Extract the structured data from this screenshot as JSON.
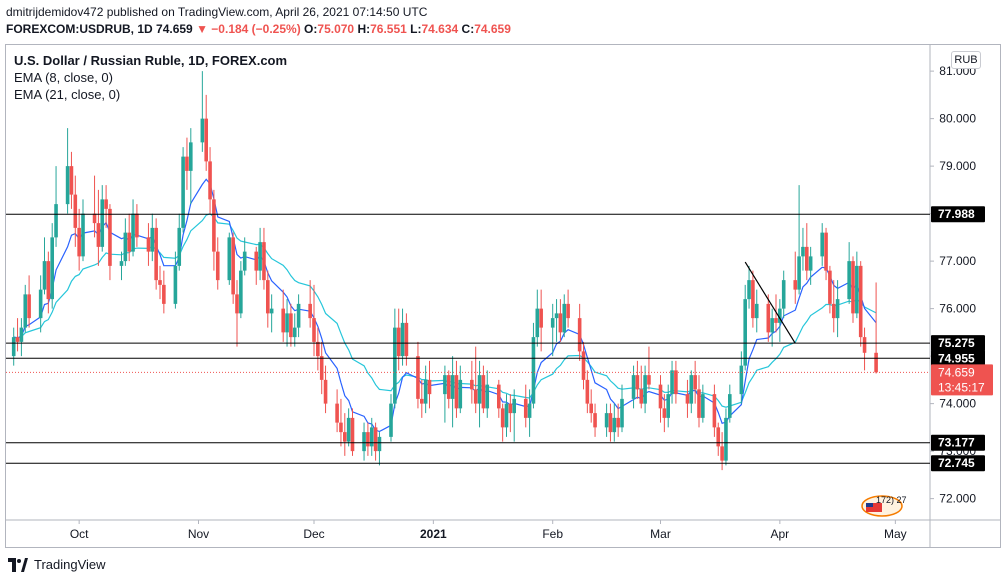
{
  "header": {
    "publisher_line": "dmitrijdemidov472 published on TradingView.com, April 26, 2021 07:14:50 UTC",
    "symbol": "FOREXCOM:USDRUB, 1D",
    "last": "74.659",
    "change": "−0.184 (−0.25%)",
    "o_label": "O:",
    "o_value": "75.070",
    "h_label": "H:",
    "h_value": "76.551",
    "l_label": "L:",
    "l_value": "74.634",
    "c_label": "C:",
    "c_value": "74.659"
  },
  "legend": {
    "title": "U.S. Dollar / Russian Ruble, 1D, FOREX.com",
    "ema8": "EMA (8, close, 0)",
    "ema21": "EMA (21, close, 0)"
  },
  "currency_button": "RUB",
  "footer": {
    "brand": "TradingView"
  },
  "badge": "172) 27",
  "colors": {
    "up": "#26a69a",
    "down": "#ef5350",
    "ema8": "#2962ff",
    "ema21": "#26c6da",
    "level_line": "#000000",
    "price_line": "#ef5350"
  },
  "chart_data": {
    "type": "candlestick",
    "ylim": [
      71.55,
      81.55
    ],
    "y_ticks": [
      "72.000",
      "73.000",
      "74.000",
      "75.000",
      "76.000",
      "77.000",
      "78.000",
      "79.000",
      "80.000",
      "81.000"
    ],
    "x_ticks": [
      {
        "label": "Oct",
        "date": "2020-10-01",
        "bold": false
      },
      {
        "label": "Nov",
        "date": "2020-11-01",
        "bold": false
      },
      {
        "label": "Dec",
        "date": "2020-12-01",
        "bold": false
      },
      {
        "label": "2021",
        "date": "2021-01-01",
        "bold": true
      },
      {
        "label": "Feb",
        "date": "2021-02-01",
        "bold": false
      },
      {
        "label": "Mar",
        "date": "2021-03-01",
        "bold": false
      },
      {
        "label": "Apr",
        "date": "2021-04-01",
        "bold": false
      },
      {
        "label": "May",
        "date": "2021-05-01",
        "bold": false
      }
    ],
    "x_range": [
      "2020-09-12",
      "2021-05-10"
    ],
    "horizontal_levels": [
      {
        "value": 77.988,
        "label": "77.988"
      },
      {
        "value": 75.275,
        "label": "75.275"
      },
      {
        "value": 74.955,
        "label": "74.955"
      },
      {
        "value": 73.177,
        "label": "73.177"
      },
      {
        "value": 72.745,
        "label": "72.745"
      }
    ],
    "current_price": {
      "value": 74.659,
      "label": "74.659",
      "countdown": "13:45:17"
    },
    "trendline": {
      "start": {
        "date": "2021-03-23",
        "value": 76.98
      },
      "end": {
        "date": "2021-04-05",
        "value": 75.27
      }
    },
    "candles": [
      [
        "2020-09-14",
        75.0,
        75.6,
        74.8,
        75.4
      ],
      [
        "2020-09-15",
        75.4,
        75.8,
        75.1,
        75.3
      ],
      [
        "2020-09-16",
        75.3,
        75.8,
        75.0,
        75.6
      ],
      [
        "2020-09-17",
        75.6,
        76.5,
        75.5,
        76.3
      ],
      [
        "2020-09-18",
        76.3,
        76.7,
        75.6,
        75.8
      ],
      [
        "2020-09-21",
        75.8,
        76.7,
        75.5,
        76.4
      ],
      [
        "2020-09-22",
        76.4,
        77.5,
        76.3,
        77.0
      ],
      [
        "2020-09-23",
        77.0,
        77.2,
        75.9,
        76.2
      ],
      [
        "2020-09-24",
        76.2,
        77.8,
        76.0,
        77.5
      ],
      [
        "2020-09-25",
        77.5,
        79.0,
        77.3,
        78.2
      ],
      [
        "2020-09-28",
        78.2,
        79.8,
        78.0,
        79.0
      ],
      [
        "2020-09-29",
        79.0,
        79.3,
        78.1,
        78.4
      ],
      [
        "2020-09-30",
        78.4,
        78.8,
        77.3,
        77.7
      ],
      [
        "2020-10-01",
        77.7,
        78.1,
        76.8,
        77.1
      ],
      [
        "2020-10-02",
        77.1,
        78.3,
        77.0,
        78.0
      ],
      [
        "2020-10-05",
        78.0,
        78.8,
        77.5,
        77.8
      ],
      [
        "2020-10-06",
        77.8,
        78.5,
        76.9,
        77.3
      ],
      [
        "2020-10-07",
        77.3,
        78.6,
        77.2,
        78.3
      ],
      [
        "2020-10-08",
        78.3,
        78.6,
        77.7,
        78.1
      ],
      [
        "2020-10-09",
        78.1,
        78.2,
        76.6,
        76.9
      ],
      [
        "2020-10-12",
        76.9,
        77.2,
        76.6,
        77.0
      ],
      [
        "2020-10-13",
        77.0,
        77.9,
        76.9,
        77.6
      ],
      [
        "2020-10-14",
        77.6,
        78.0,
        77.0,
        77.2
      ],
      [
        "2020-10-15",
        77.2,
        78.3,
        77.1,
        78.0
      ],
      [
        "2020-10-16",
        78.0,
        78.2,
        77.3,
        77.5
      ],
      [
        "2020-10-19",
        77.5,
        77.8,
        76.9,
        77.2
      ],
      [
        "2020-10-20",
        77.2,
        78.0,
        77.0,
        77.7
      ],
      [
        "2020-10-21",
        77.7,
        77.9,
        76.4,
        76.6
      ],
      [
        "2020-10-22",
        76.6,
        76.9,
        76.2,
        76.5
      ],
      [
        "2020-10-23",
        76.5,
        76.8,
        75.9,
        76.1
      ],
      [
        "2020-10-26",
        76.1,
        77.2,
        76.0,
        76.9
      ],
      [
        "2020-10-27",
        76.9,
        78.0,
        76.8,
        77.7
      ],
      [
        "2020-10-28",
        77.7,
        79.4,
        77.6,
        79.2
      ],
      [
        "2020-10-29",
        79.2,
        79.6,
        78.5,
        78.9
      ],
      [
        "2020-10-30",
        78.9,
        79.8,
        78.2,
        79.5
      ],
      [
        "2020-11-02",
        79.5,
        81.0,
        79.3,
        80.0
      ],
      [
        "2020-11-03",
        80.0,
        80.5,
        78.9,
        79.1
      ],
      [
        "2020-11-04",
        79.1,
        79.4,
        78.0,
        78.3
      ],
      [
        "2020-11-05",
        78.3,
        78.5,
        76.8,
        77.2
      ],
      [
        "2020-11-06",
        77.2,
        77.5,
        76.4,
        76.6
      ],
      [
        "2020-11-09",
        76.6,
        77.6,
        76.5,
        77.5
      ],
      [
        "2020-11-10",
        77.5,
        77.6,
        76.1,
        76.3
      ],
      [
        "2020-11-11",
        76.3,
        76.6,
        75.2,
        75.9
      ],
      [
        "2020-11-12",
        75.9,
        77.0,
        75.8,
        76.8
      ],
      [
        "2020-11-13",
        76.8,
        77.5,
        76.7,
        77.2
      ],
      [
        "2020-11-16",
        77.2,
        77.3,
        76.5,
        76.8
      ],
      [
        "2020-11-17",
        76.8,
        77.7,
        76.6,
        77.4
      ],
      [
        "2020-11-18",
        77.4,
        77.7,
        76.4,
        76.6
      ],
      [
        "2020-11-19",
        76.6,
        76.8,
        75.6,
        75.9
      ],
      [
        "2020-11-20",
        75.9,
        76.3,
        75.5,
        76.0
      ],
      [
        "2020-11-23",
        76.0,
        76.4,
        75.3,
        75.5
      ],
      [
        "2020-11-24",
        75.5,
        76.2,
        75.2,
        75.9
      ],
      [
        "2020-11-25",
        75.9,
        76.1,
        75.2,
        75.4
      ],
      [
        "2020-11-26",
        75.4,
        75.9,
        75.2,
        75.6
      ],
      [
        "2020-11-27",
        75.6,
        76.3,
        75.4,
        76.1
      ],
      [
        "2020-11-30",
        76.1,
        76.6,
        75.6,
        75.8
      ],
      [
        "2020-12-01",
        75.8,
        76.5,
        75.0,
        75.3
      ],
      [
        "2020-12-02",
        75.3,
        75.6,
        74.7,
        75.0
      ],
      [
        "2020-12-03",
        75.0,
        75.3,
        74.2,
        74.5
      ],
      [
        "2020-12-04",
        74.5,
        74.8,
        73.8,
        74.0
      ],
      [
        "2020-12-07",
        74.0,
        74.3,
        73.4,
        73.6
      ],
      [
        "2020-12-08",
        73.6,
        74.1,
        73.1,
        73.4
      ],
      [
        "2020-12-09",
        73.4,
        73.8,
        72.9,
        73.2
      ],
      [
        "2020-12-10",
        73.2,
        73.9,
        73.1,
        73.7
      ],
      [
        "2020-12-11",
        73.7,
        73.9,
        72.9,
        73.0
      ],
      [
        "2020-12-14",
        73.0,
        73.6,
        72.8,
        73.4
      ],
      [
        "2020-12-15",
        73.4,
        73.6,
        72.9,
        73.1
      ],
      [
        "2020-12-16",
        73.1,
        73.7,
        72.9,
        73.5
      ],
      [
        "2020-12-17",
        73.5,
        73.6,
        72.8,
        73.0
      ],
      [
        "2020-12-18",
        73.0,
        73.4,
        72.7,
        73.3
      ],
      [
        "2020-12-21",
        73.3,
        74.2,
        73.2,
        74.0
      ],
      [
        "2020-12-22",
        74.0,
        76.0,
        73.9,
        75.6
      ],
      [
        "2020-12-23",
        75.6,
        76.0,
        74.7,
        75.0
      ],
      [
        "2020-12-24",
        75.0,
        76.0,
        74.8,
        75.7
      ],
      [
        "2020-12-25",
        75.7,
        75.9,
        74.8,
        75.0
      ],
      [
        "2020-12-28",
        75.0,
        75.3,
        73.9,
        74.1
      ],
      [
        "2020-12-29",
        74.1,
        74.5,
        73.7,
        74.0
      ],
      [
        "2020-12-30",
        74.0,
        74.8,
        73.8,
        74.5
      ],
      [
        "2020-12-31",
        74.5,
        74.9,
        73.9,
        74.2
      ],
      [
        "2021-01-04",
        74.2,
        74.8,
        73.6,
        74.6
      ],
      [
        "2021-01-05",
        74.6,
        74.7,
        73.9,
        74.1
      ],
      [
        "2021-01-06",
        74.1,
        75.0,
        73.5,
        74.6
      ],
      [
        "2021-01-07",
        74.6,
        74.9,
        73.7,
        73.9
      ],
      [
        "2021-01-08",
        73.9,
        74.8,
        73.8,
        74.5
      ],
      [
        "2021-01-11",
        74.5,
        74.9,
        74.0,
        74.3
      ],
      [
        "2021-01-12",
        74.3,
        75.2,
        73.8,
        74.0
      ],
      [
        "2021-01-13",
        74.0,
        74.9,
        73.5,
        74.6
      ],
      [
        "2021-01-14",
        74.6,
        74.8,
        73.8,
        73.9
      ],
      [
        "2021-01-15",
        73.9,
        74.7,
        73.7,
        74.4
      ],
      [
        "2021-01-18",
        74.4,
        74.5,
        73.7,
        73.9
      ],
      [
        "2021-01-19",
        73.9,
        74.0,
        73.2,
        73.5
      ],
      [
        "2021-01-20",
        73.5,
        74.2,
        73.3,
        74.0
      ],
      [
        "2021-01-21",
        74.0,
        74.2,
        73.4,
        73.8
      ],
      [
        "2021-01-22",
        73.8,
        74.3,
        73.2,
        74.1
      ],
      [
        "2021-01-25",
        74.1,
        74.4,
        73.5,
        73.7
      ],
      [
        "2021-01-26",
        73.7,
        74.3,
        73.3,
        74.0
      ],
      [
        "2021-01-27",
        74.0,
        75.7,
        73.9,
        75.4
      ],
      [
        "2021-01-28",
        75.4,
        76.4,
        75.2,
        76.0
      ],
      [
        "2021-01-29",
        76.0,
        76.4,
        75.1,
        75.6
      ],
      [
        "2021-02-01",
        75.6,
        76.1,
        75.0,
        75.8
      ],
      [
        "2021-02-02",
        75.8,
        76.2,
        75.3,
        75.9
      ],
      [
        "2021-02-03",
        75.9,
        76.2,
        75.3,
        75.5
      ],
      [
        "2021-02-04",
        75.5,
        76.3,
        75.4,
        76.1
      ],
      [
        "2021-02-05",
        76.1,
        76.4,
        75.6,
        75.8
      ],
      [
        "2021-02-08",
        75.8,
        76.1,
        74.9,
        75.1
      ],
      [
        "2021-02-09",
        75.1,
        75.3,
        74.3,
        74.5
      ],
      [
        "2021-02-10",
        74.5,
        74.7,
        73.8,
        74.0
      ],
      [
        "2021-02-11",
        74.0,
        74.3,
        73.6,
        73.8
      ],
      [
        "2021-02-12",
        73.8,
        74.0,
        73.3,
        73.5
      ],
      [
        "2021-02-15",
        73.5,
        74.0,
        73.3,
        73.8
      ],
      [
        "2021-02-16",
        73.8,
        74.0,
        73.2,
        73.4
      ],
      [
        "2021-02-17",
        73.4,
        74.0,
        73.2,
        73.7
      ],
      [
        "2021-02-18",
        73.7,
        74.0,
        73.3,
        73.5
      ],
      [
        "2021-02-19",
        73.5,
        74.4,
        73.4,
        74.1
      ],
      [
        "2021-02-22",
        74.1,
        74.8,
        73.9,
        74.6
      ],
      [
        "2021-02-23",
        74.6,
        74.9,
        74.1,
        74.3
      ],
      [
        "2021-02-24",
        74.3,
        74.8,
        73.9,
        74.0
      ],
      [
        "2021-02-25",
        74.0,
        74.8,
        73.8,
        74.6
      ],
      [
        "2021-02-26",
        74.6,
        75.2,
        74.3,
        74.4
      ],
      [
        "2021-03-01",
        74.4,
        74.6,
        73.6,
        73.9
      ],
      [
        "2021-03-02",
        73.9,
        74.2,
        73.4,
        73.7
      ],
      [
        "2021-03-03",
        73.7,
        74.4,
        73.5,
        74.2
      ],
      [
        "2021-03-04",
        74.2,
        74.9,
        74.0,
        74.7
      ],
      [
        "2021-03-05",
        74.7,
        74.9,
        74.0,
        74.2
      ],
      [
        "2021-03-08",
        74.2,
        74.5,
        73.7,
        74.0
      ],
      [
        "2021-03-09",
        74.0,
        74.7,
        73.8,
        74.6
      ],
      [
        "2021-03-10",
        74.6,
        74.9,
        74.0,
        74.3
      ],
      [
        "2021-03-11",
        74.3,
        74.6,
        73.5,
        73.7
      ],
      [
        "2021-03-12",
        73.7,
        74.4,
        73.6,
        74.2
      ],
      [
        "2021-03-15",
        74.2,
        74.4,
        73.3,
        73.5
      ],
      [
        "2021-03-16",
        73.5,
        73.6,
        72.9,
        73.1
      ],
      [
        "2021-03-17",
        73.1,
        73.4,
        72.6,
        72.8
      ],
      [
        "2021-03-18",
        72.8,
        73.9,
        72.7,
        73.7
      ],
      [
        "2021-03-19",
        73.7,
        74.4,
        73.6,
        74.2
      ],
      [
        "2021-03-22",
        74.2,
        75.1,
        74.0,
        74.8
      ],
      [
        "2021-03-23",
        74.8,
        76.5,
        74.7,
        76.2
      ],
      [
        "2021-03-24",
        76.2,
        76.9,
        76.0,
        76.6
      ],
      [
        "2021-03-25",
        76.6,
        76.8,
        75.6,
        75.8
      ],
      [
        "2021-03-26",
        75.8,
        76.4,
        75.5,
        76.1
      ],
      [
        "2021-03-29",
        76.1,
        76.3,
        75.3,
        75.5
      ],
      [
        "2021-03-30",
        75.5,
        76.0,
        75.2,
        75.8
      ],
      [
        "2021-03-31",
        75.8,
        76.3,
        75.5,
        75.7
      ],
      [
        "2021-04-01",
        75.7,
        76.2,
        75.3,
        76.0
      ],
      [
        "2021-04-02",
        76.0,
        76.8,
        75.8,
        76.6
      ],
      [
        "2021-04-05",
        76.6,
        77.2,
        76.1,
        76.4
      ],
      [
        "2021-04-06",
        76.4,
        78.6,
        76.3,
        77.1
      ],
      [
        "2021-04-07",
        77.1,
        77.7,
        76.8,
        77.3
      ],
      [
        "2021-04-08",
        77.3,
        77.8,
        76.6,
        76.8
      ],
      [
        "2021-04-09",
        76.8,
        77.3,
        76.5,
        77.1
      ],
      [
        "2021-04-12",
        77.1,
        77.8,
        76.9,
        77.6
      ],
      [
        "2021-04-13",
        77.6,
        77.7,
        76.6,
        76.8
      ],
      [
        "2021-04-14",
        76.8,
        76.9,
        75.9,
        76.1
      ],
      [
        "2021-04-15",
        76.1,
        76.6,
        75.5,
        75.8
      ],
      [
        "2021-04-16",
        75.8,
        76.6,
        75.4,
        76.2
      ],
      [
        "2021-04-19",
        76.2,
        77.4,
        76.1,
        77.0
      ],
      [
        "2021-04-20",
        77.0,
        77.1,
        75.7,
        75.9
      ],
      [
        "2021-04-21",
        75.9,
        77.2,
        75.8,
        76.9
      ],
      [
        "2021-04-22",
        76.9,
        77.0,
        75.2,
        75.4
      ],
      [
        "2021-04-23",
        75.4,
        75.6,
        74.7,
        75.07
      ],
      [
        "2021-04-26",
        75.07,
        76.551,
        74.634,
        74.659
      ]
    ]
  }
}
